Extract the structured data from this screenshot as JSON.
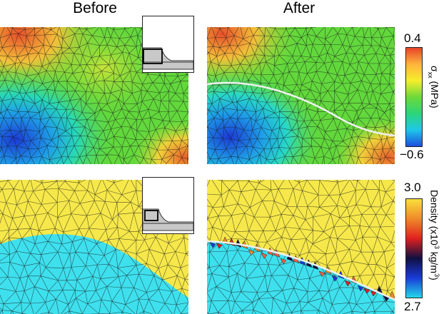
{
  "columns": {
    "before": "Before",
    "after": "After"
  },
  "stress_colorbar": {
    "max_label": "0.4",
    "min_label": "−0.6",
    "label_symbol": "σ",
    "label_subscript": "xx",
    "label_unit": " (MPa)",
    "colors": [
      "#e8432a",
      "#ffb43c",
      "#f5ef2a",
      "#6ed93a",
      "#2bd67a",
      "#1ec8e8",
      "#1b4fe0"
    ]
  },
  "density_colorbar": {
    "max_label": "3.0",
    "min_label": "2.7",
    "label_main": "Density (x10",
    "label_superscript_1": "3",
    "label_unit": " kg/m",
    "label_superscript_2": "3",
    "label_end": ")",
    "colors": [
      "#f8e03a",
      "#f08a28",
      "#e02020",
      "#101040",
      "#1a3ad8",
      "#22d8e8"
    ]
  },
  "colors": {
    "upper_yellow": "#f6e84a",
    "lower_cyan": "#3ee0ee",
    "mesh_line": "#1a1a1a",
    "interface_line": "#f0f0f0",
    "inset_fill": "#c8c8c8"
  }
}
